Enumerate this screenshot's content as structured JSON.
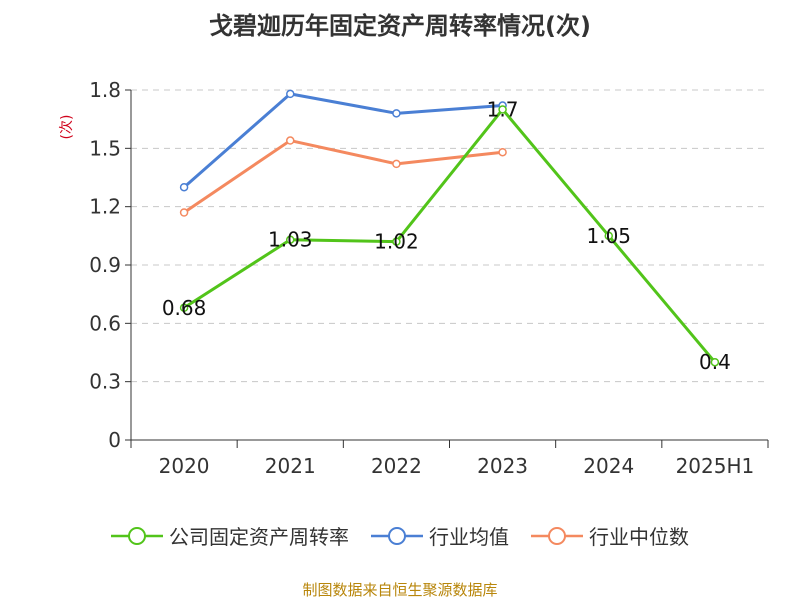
{
  "chart_data": {
    "type": "line",
    "title": "戈碧迦历年固定资产周转率情况(次)",
    "ylabel": "(次)",
    "categories": [
      "2020",
      "2021",
      "2022",
      "2023",
      "2024",
      "2025H1"
    ],
    "ylim": [
      0,
      1.8
    ],
    "yticks": [
      0,
      0.3,
      0.6,
      0.9,
      1.2,
      1.5,
      1.8
    ],
    "ytick_labels": [
      "0",
      "0.3",
      "0.6",
      "0.9",
      "1.2",
      "1.5",
      "1.8"
    ],
    "grid": "horizontal-dashed",
    "legend_position": "bottom",
    "series": [
      {
        "name": "公司固定资产周转率",
        "color": "#52c41a",
        "values": [
          0.68,
          1.03,
          1.02,
          1.7,
          1.05,
          0.4
        ],
        "data_labels": [
          "0.68",
          "1.03",
          "1.02",
          "1.7",
          "1.05",
          "0.4"
        ]
      },
      {
        "name": "行业均值",
        "color": "#4a7fd4",
        "values": [
          1.3,
          1.78,
          1.68,
          1.72,
          null,
          null
        ]
      },
      {
        "name": "行业中位数",
        "color": "#f4895f",
        "values": [
          1.17,
          1.54,
          1.42,
          1.48,
          null,
          null
        ]
      }
    ]
  },
  "source": "制图数据来自恒生聚源数据库"
}
